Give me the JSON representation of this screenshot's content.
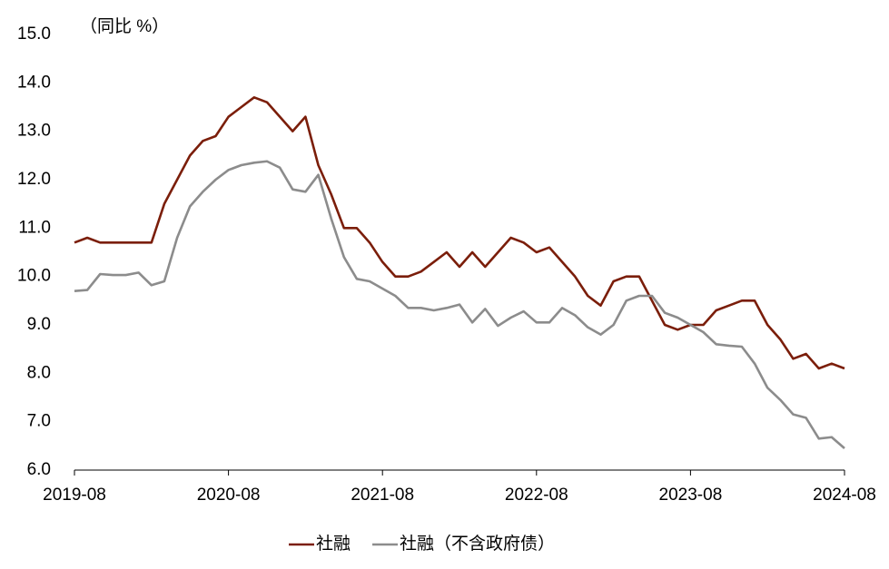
{
  "chart_data": {
    "type": "line",
    "unit_label": "（同比 %）",
    "categories": [
      "2019-08",
      null,
      null,
      null,
      null,
      null,
      null,
      null,
      null,
      null,
      null,
      null,
      "2020-08",
      null,
      null,
      null,
      null,
      null,
      null,
      null,
      null,
      null,
      null,
      null,
      "2021-08",
      null,
      null,
      null,
      null,
      null,
      null,
      null,
      null,
      null,
      null,
      null,
      "2022-08",
      null,
      null,
      null,
      null,
      null,
      null,
      null,
      null,
      null,
      null,
      null,
      "2023-08",
      null,
      null,
      null,
      null,
      null,
      null,
      null,
      null,
      null,
      null,
      null,
      "2024-08"
    ],
    "series": [
      {
        "name": "社融",
        "color": "#7b1e0a",
        "values": [
          10.7,
          10.8,
          10.7,
          10.7,
          10.7,
          10.7,
          10.7,
          11.5,
          12.0,
          12.5,
          12.8,
          12.9,
          13.3,
          13.5,
          13.7,
          13.6,
          13.3,
          13.0,
          13.3,
          12.3,
          11.7,
          11.0,
          11.0,
          10.7,
          10.3,
          10.0,
          10.0,
          10.1,
          10.3,
          10.5,
          10.2,
          10.5,
          10.2,
          10.5,
          10.8,
          10.7,
          10.5,
          10.6,
          10.3,
          10.0,
          9.6,
          9.4,
          9.9,
          10.0,
          10.0,
          9.5,
          9.0,
          8.9,
          9.0,
          9.0,
          9.3,
          9.4,
          9.5,
          9.5,
          9.0,
          8.7,
          8.3,
          8.4,
          8.1,
          8.2,
          8.1
        ]
      },
      {
        "name": "社融（不含政府债）",
        "color": "#8c8c8c",
        "values": [
          9.7,
          9.72,
          10.05,
          10.03,
          10.03,
          10.08,
          9.82,
          9.9,
          10.8,
          11.45,
          11.75,
          12.0,
          12.2,
          12.3,
          12.35,
          12.38,
          12.25,
          11.8,
          11.75,
          12.1,
          11.2,
          10.4,
          9.95,
          9.9,
          9.75,
          9.6,
          9.35,
          9.35,
          9.3,
          9.35,
          9.42,
          9.05,
          9.33,
          8.98,
          9.15,
          9.28,
          9.05,
          9.05,
          9.35,
          9.2,
          8.95,
          8.8,
          9.0,
          9.5,
          9.6,
          9.6,
          9.25,
          9.15,
          9.0,
          8.85,
          8.6,
          8.57,
          8.55,
          8.2,
          7.7,
          7.45,
          7.15,
          7.08,
          6.65,
          6.68,
          6.45
        ]
      }
    ],
    "ylim": [
      6,
      15
    ],
    "yticks": [
      {
        "value": 6,
        "label": "6.0"
      },
      {
        "value": 7,
        "label": "7.0"
      },
      {
        "value": 8,
        "label": "8.0"
      },
      {
        "value": 9,
        "label": "9.0"
      },
      {
        "value": 10,
        "label": "10.0"
      },
      {
        "value": 11,
        "label": "11.0"
      },
      {
        "value": 12,
        "label": "12.0"
      },
      {
        "value": 13,
        "label": "13.0"
      },
      {
        "value": 14,
        "label": "14.0"
      },
      {
        "value": 15,
        "label": "15.0"
      }
    ],
    "legend": "bottom"
  }
}
